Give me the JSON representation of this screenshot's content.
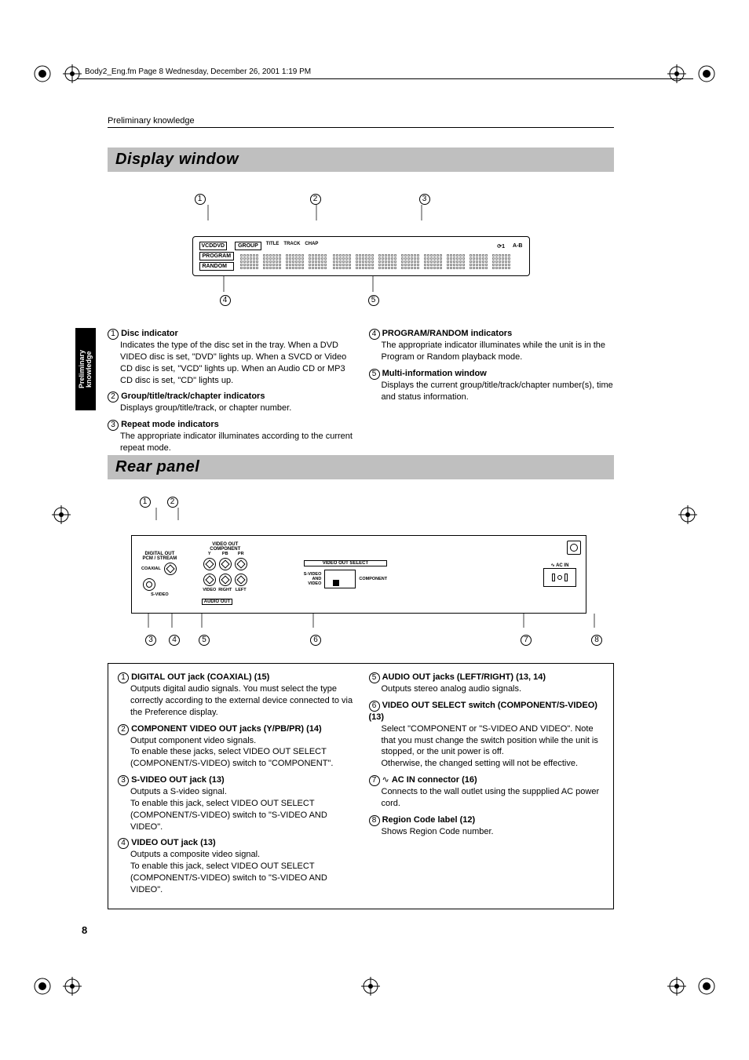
{
  "header": "Body2_Eng.fm  Page 8  Wednesday, December 26, 2001  1:19 PM",
  "breadcrumb": "Preliminary knowledge",
  "page_number": "8",
  "sidebar": {
    "line1": "Preliminary",
    "line2": "knowledge"
  },
  "section1": {
    "title": "Display window",
    "lcd": {
      "tag_vcd": "VCD",
      "tag_dvd": "DVD",
      "tag_group": "GROUP",
      "tag_title": "TITLE",
      "tag_track": "TRACK",
      "tag_chap": "CHAP",
      "tag_repeat1": "1",
      "tag_ab": "A-B",
      "tag_program": "PROGRAM",
      "tag_random": "RANDOM"
    },
    "callouts": [
      "1",
      "2",
      "3",
      "4",
      "5"
    ],
    "items_left": [
      {
        "num": "1",
        "title": "Disc indicator",
        "body": "Indicates the type of the disc set in the tray. When a DVD VIDEO disc is set, \"DVD\" lights up. When a SVCD or Video CD disc is set, \"VCD\" lights up. When an Audio CD or MP3 CD disc is set, \"CD\" lights up."
      },
      {
        "num": "2",
        "title": "Group/title/track/chapter indicators",
        "body": "Displays group/title/track, or chapter number."
      },
      {
        "num": "3",
        "title": "Repeat mode indicators",
        "body": "The appropriate indicator illuminates according to the current repeat mode."
      }
    ],
    "items_right": [
      {
        "num": "4",
        "title": "PROGRAM/RANDOM indicators",
        "body": "The appropriate indicator illuminates while the unit is in the Program or Random playback mode."
      },
      {
        "num": "5",
        "title": "Multi-information window",
        "body": "Displays the current group/title/track/chapter number(s), time and status information."
      }
    ]
  },
  "section2": {
    "title": "Rear panel",
    "callouts": [
      "1",
      "2",
      "3",
      "4",
      "5",
      "6",
      "7",
      "8"
    ],
    "diagram": {
      "digital_out": "DIGITAL OUT",
      "pcm": "PCM / STREAM",
      "coaxial": "COAXIAL",
      "video_out": "VIDEO OUT",
      "component": "COMPONENT",
      "y": "Y",
      "pb": "PB",
      "pr": "PR",
      "svideo": "S-VIDEO",
      "video": "VIDEO",
      "right": "RIGHT",
      "left": "LEFT",
      "audio_out": "AUDIO OUT",
      "select_label": "VIDEO OUT SELECT",
      "sel_component": "COMPONENT",
      "sel_svideo": "S-VIDEO\nAND\nVIDEO",
      "ac_in": "AC IN"
    },
    "items_left": [
      {
        "num": "1",
        "title": "DIGITAL OUT jack (COAXIAL) (15)",
        "body": "Outputs digital audio signals. You must select the type correctly according to the external device connected to via the Preference display."
      },
      {
        "num": "2",
        "title": "COMPONENT VIDEO OUT jacks (Y/PB/PR) (14)",
        "body": "Output component video signals.\nTo enable these jacks, select VIDEO OUT SELECT (COMPONENT/S-VIDEO) switch to \"COMPONENT\"."
      },
      {
        "num": "3",
        "title": "S-VIDEO OUT jack (13)",
        "body": "Outputs a S-video signal.\nTo enable this jack, select VIDEO OUT SELECT (COMPONENT/S-VIDEO) switch to \"S-VIDEO AND VIDEO\"."
      },
      {
        "num": "4",
        "title": "VIDEO OUT jack (13)",
        "body": "Outputs a composite video signal.\nTo enable this jack, select VIDEO OUT SELECT (COMPONENT/S-VIDEO) switch to \"S-VIDEO AND VIDEO\"."
      }
    ],
    "items_right": [
      {
        "num": "5",
        "title": "AUDIO OUT jacks (LEFT/RIGHT) (13, 14)",
        "body": "Outputs stereo analog audio signals."
      },
      {
        "num": "6",
        "title": "VIDEO OUT SELECT switch (COMPONENT/S-VIDEO) (13)",
        "body": "Select \"COMPONENT or \"S-VIDEO AND VIDEO\". Note that you must change the switch position while the unit is stopped, or the unit power is off.\nOtherwise, the changed setting will not be effective."
      },
      {
        "num": "7",
        "title": "AC IN connector (16)",
        "body": "Connects to the wall outlet using the suppplied AC power cord.",
        "prefix_glyph": "∿"
      },
      {
        "num": "8",
        "title": "Region Code label (12)",
        "body": "Shows Region Code number."
      }
    ]
  }
}
